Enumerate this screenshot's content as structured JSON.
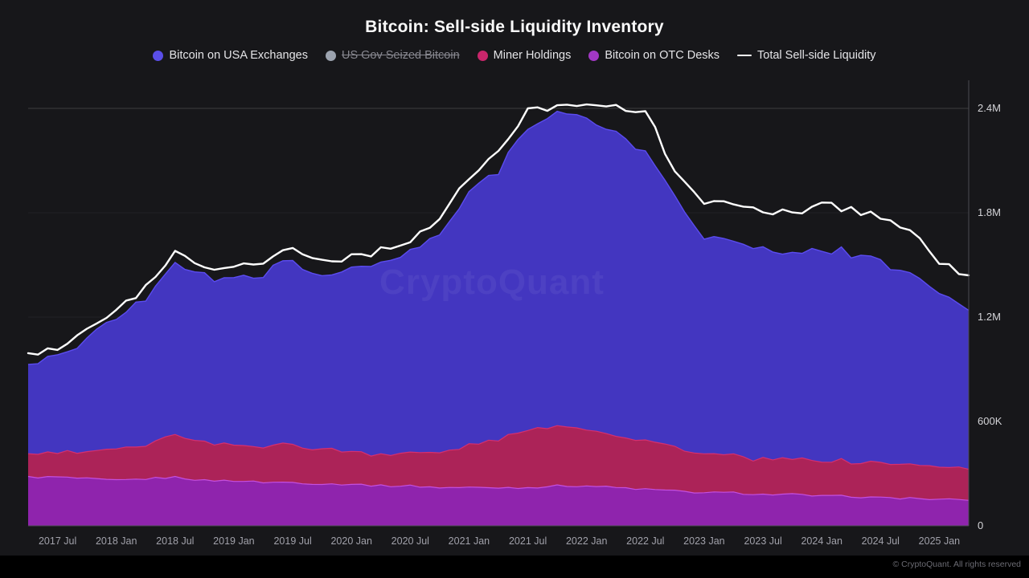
{
  "title": "Bitcoin: Sell-side Liquidity Inventory",
  "watermark": "CryptoQuant",
  "footer": "© CryptoQuant. All rights reserved",
  "legend": {
    "items": [
      {
        "label": "Bitcoin on USA Exchanges",
        "color": "#5a4ee8",
        "marker": "dot",
        "disabled": false
      },
      {
        "label": "US Gov Seized Bitcoin",
        "color": "#9ca3af",
        "marker": "dot",
        "disabled": true
      },
      {
        "label": "Miner Holdings",
        "color": "#c9266b",
        "marker": "dot",
        "disabled": false
      },
      {
        "label": "Bitcoin on OTC Desks",
        "color": "#a238c4",
        "marker": "dot",
        "disabled": false
      },
      {
        "label": "Total Sell-side Liquidity",
        "color": "#ffffff",
        "marker": "line",
        "disabled": false
      }
    ]
  },
  "chart_data": {
    "type": "area",
    "stacked": true,
    "title": "Bitcoin: Sell-side Liquidity Inventory",
    "value_unit": "millions of BTC",
    "ylim": [
      0,
      2.56
    ],
    "grid": true,
    "legend_position": "top",
    "x": [
      "2017-04",
      "2017-07",
      "2017-10",
      "2018-01",
      "2018-04",
      "2018-07",
      "2018-10",
      "2019-01",
      "2019-04",
      "2019-07",
      "2019-10",
      "2020-01",
      "2020-04",
      "2020-07",
      "2020-10",
      "2021-01",
      "2021-04",
      "2021-07",
      "2021-10",
      "2022-01",
      "2022-04",
      "2022-07",
      "2022-10",
      "2023-01",
      "2023-04",
      "2023-07",
      "2023-10",
      "2024-01",
      "2024-04",
      "2024-07",
      "2024-10",
      "2025-01",
      "2025-04"
    ],
    "series": [
      {
        "name": "Bitcoin on OTC Desks",
        "color": "#8f24ad",
        "edge": "#c44fe0",
        "values": [
          0.28,
          0.28,
          0.27,
          0.26,
          0.27,
          0.28,
          0.26,
          0.26,
          0.25,
          0.25,
          0.24,
          0.24,
          0.23,
          0.23,
          0.22,
          0.22,
          0.22,
          0.22,
          0.23,
          0.23,
          0.22,
          0.21,
          0.2,
          0.19,
          0.19,
          0.18,
          0.18,
          0.17,
          0.17,
          0.16,
          0.16,
          0.15,
          0.15
        ]
      },
      {
        "name": "Miner Holdings",
        "color": "#ac2358",
        "edge": "#d62f6f",
        "values": [
          0.13,
          0.14,
          0.15,
          0.17,
          0.2,
          0.25,
          0.22,
          0.2,
          0.21,
          0.22,
          0.2,
          0.19,
          0.18,
          0.19,
          0.2,
          0.24,
          0.28,
          0.33,
          0.35,
          0.33,
          0.3,
          0.28,
          0.25,
          0.22,
          0.21,
          0.2,
          0.2,
          0.2,
          0.2,
          0.2,
          0.19,
          0.19,
          0.18
        ]
      },
      {
        "name": "Bitcoin on USA Exchanges",
        "color": "#4336c0",
        "edge": "#5b4cf0",
        "values": [
          0.52,
          0.55,
          0.65,
          0.75,
          0.85,
          1.0,
          0.95,
          0.95,
          1.0,
          1.05,
          1.0,
          1.05,
          1.1,
          1.15,
          1.25,
          1.45,
          1.55,
          1.75,
          1.8,
          1.78,
          1.75,
          1.65,
          1.45,
          1.25,
          1.22,
          1.2,
          1.18,
          1.22,
          1.2,
          1.15,
          1.1,
          1.0,
          0.92
        ]
      }
    ],
    "line_series": {
      "name": "Total Sell-side Liquidity",
      "color": "#ffffff",
      "values": [
        1.0,
        1.02,
        1.12,
        1.23,
        1.38,
        1.57,
        1.5,
        1.48,
        1.53,
        1.6,
        1.52,
        1.55,
        1.58,
        1.65,
        1.76,
        2.0,
        2.15,
        2.38,
        2.42,
        2.44,
        2.4,
        2.38,
        2.05,
        1.87,
        1.83,
        1.82,
        1.8,
        1.85,
        1.82,
        1.78,
        1.7,
        1.52,
        1.42
      ]
    },
    "disabled_series": [
      "US Gov Seized Bitcoin"
    ],
    "y_ticks": [
      {
        "value": 2.4,
        "label": "2.4M"
      },
      {
        "value": 1.8,
        "label": "1.8M"
      },
      {
        "value": 1.2,
        "label": "1.2M"
      },
      {
        "value": 0.6,
        "label": "600K"
      },
      {
        "value": 0,
        "label": "0"
      }
    ],
    "x_ticks": [
      {
        "label": "2017 Jul",
        "i": 1
      },
      {
        "label": "2018 Jan",
        "i": 3
      },
      {
        "label": "2018 Jul",
        "i": 5
      },
      {
        "label": "2019 Jan",
        "i": 7
      },
      {
        "label": "2019 Jul",
        "i": 9
      },
      {
        "label": "2020 Jan",
        "i": 11
      },
      {
        "label": "2020 Jul",
        "i": 13
      },
      {
        "label": "2021 Jan",
        "i": 15
      },
      {
        "label": "2021 Jul",
        "i": 17
      },
      {
        "label": "2022 Jan",
        "i": 19
      },
      {
        "label": "2022 Jul",
        "i": 21
      },
      {
        "label": "2023 Jan",
        "i": 23
      },
      {
        "label": "2023 Jul",
        "i": 25
      },
      {
        "label": "2024 Jan",
        "i": 27
      },
      {
        "label": "2024 Jul",
        "i": 29
      },
      {
        "label": "2025 Jan",
        "i": 31
      }
    ]
  }
}
